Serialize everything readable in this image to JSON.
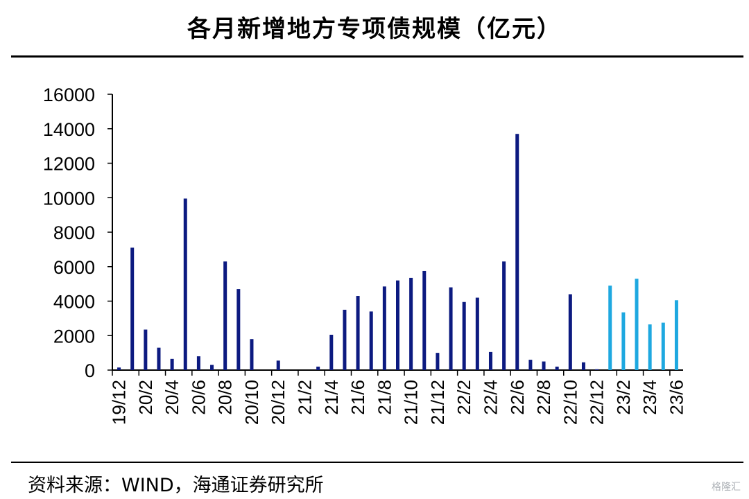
{
  "title": "各月新增地方专项债规模（亿元）",
  "source": "资料来源：WIND，海通证券研究所",
  "watermark": "格隆汇",
  "colors": {
    "historical": "#0c1a80",
    "recent": "#1ea8e0",
    "axis": "#000000"
  },
  "chart_data": {
    "type": "bar",
    "categories": [
      "19/12",
      "20/1",
      "20/2",
      "20/3",
      "20/4",
      "20/5",
      "20/6",
      "20/7",
      "20/8",
      "20/9",
      "20/10",
      "20/11",
      "20/12",
      "21/1",
      "21/2",
      "21/3",
      "21/4",
      "21/5",
      "21/6",
      "21/7",
      "21/8",
      "21/9",
      "21/10",
      "21/11",
      "21/12",
      "22/1",
      "22/2",
      "22/3",
      "22/4",
      "22/5",
      "22/6",
      "22/7",
      "22/8",
      "22/9",
      "22/10",
      "22/11",
      "22/12",
      "23/1",
      "23/2",
      "23/3",
      "23/4",
      "23/5",
      "23/6"
    ],
    "tick_labels": [
      "19/12",
      "20/2",
      "20/4",
      "20/6",
      "20/8",
      "20/10",
      "20/12",
      "21/2",
      "21/4",
      "21/6",
      "21/8",
      "21/10",
      "21/12",
      "22/2",
      "22/4",
      "22/6",
      "22/8",
      "22/10",
      "22/12",
      "23/2",
      "23/4",
      "23/6"
    ],
    "values": [
      150,
      7100,
      2350,
      1300,
      650,
      9950,
      800,
      300,
      6300,
      4700,
      1800,
      0,
      550,
      0,
      0,
      200,
      2050,
      3500,
      4300,
      3400,
      4850,
      5200,
      5350,
      5750,
      1000,
      4800,
      3950,
      4200,
      1050,
      6300,
      13700,
      600,
      500,
      200,
      4400,
      450,
      50,
      4900,
      3350,
      5300,
      2650,
      2750,
      4050
    ],
    "highlight_from_index": 37,
    "ylim": [
      0,
      16000
    ],
    "yticks": [
      0,
      2000,
      4000,
      6000,
      8000,
      10000,
      12000,
      14000,
      16000
    ],
    "xlabel": "",
    "ylabel": "",
    "grid": false,
    "legend": "none"
  }
}
